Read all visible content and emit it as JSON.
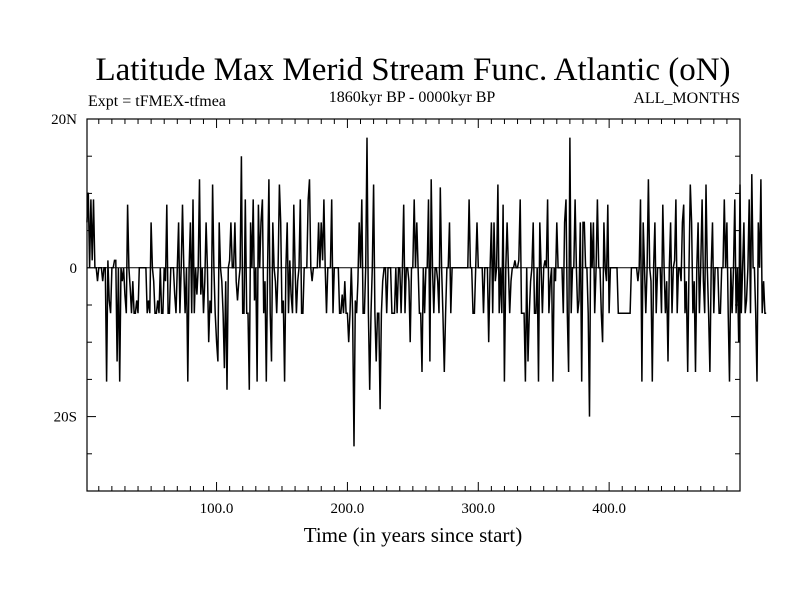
{
  "chart_data": {
    "type": "line",
    "title": "Latitude Max Merid Stream Func. Atlantic (oN)",
    "subtitle_left": "Expt = tFMEX-tfmea",
    "subtitle_center": "1860kyr BP - 0000kyr BP",
    "subtitle_right": "ALL_MONTHS",
    "xlabel": "Time (in years since start)",
    "ylabel": "",
    "xlim": [
      1,
      500
    ],
    "ylim": [
      -30,
      20
    ],
    "x_ticks": [
      100,
      200,
      300,
      400
    ],
    "x_tick_labels": [
      "100.0",
      "200.0",
      "300.0",
      "400.0"
    ],
    "y_ticks": [
      20,
      0,
      -20
    ],
    "y_tick_labels": [
      "20N",
      "0",
      "20S"
    ],
    "y_minor_ticks": [
      15,
      10,
      5,
      -5,
      -10,
      -15,
      -25
    ],
    "zero_line": true,
    "series": [
      {
        "name": "latitude",
        "x_start": 1,
        "x_step": 1,
        "values": [
          6.1,
          10.1,
          0,
          9.2,
          1,
          9.2,
          0,
          0,
          -1.8,
          0,
          0,
          0,
          -1.8,
          0,
          0,
          -15.3,
          1,
          -4.4,
          -6.1,
          0,
          0,
          1,
          1,
          -12.6,
          0,
          -15.3,
          0,
          -1.8,
          0,
          -3.6,
          -6.1,
          8.5,
          0,
          -2.7,
          -6.1,
          -1.8,
          -6.1,
          -6.1,
          -4.4,
          -6.1,
          0,
          0,
          0,
          0,
          0,
          0,
          -6.1,
          -4.4,
          -6.1,
          6.1,
          0,
          -1.8,
          -6.1,
          -6.1,
          -4.4,
          -6.1,
          0,
          -6.1,
          -6.1,
          0,
          -1.8,
          8.5,
          -6.1,
          -6.1,
          0,
          0,
          0,
          -3.6,
          -6.1,
          0,
          6.1,
          -6.1,
          0,
          8.5,
          0,
          -6.1,
          0,
          -15.3,
          0,
          6.1,
          -6.1,
          9.2,
          -6.1,
          0,
          -3.6,
          0,
          11.9,
          -3.6,
          0,
          -6.1,
          -1.8,
          6.1,
          0,
          -10,
          -4.4,
          -6.1,
          11.2,
          0,
          -6.1,
          -10,
          -12.6,
          6.1,
          0,
          -1.8,
          -6.1,
          -13.5,
          -1.8,
          -16.4,
          0,
          1,
          6.1,
          0,
          0,
          6.1,
          -1.8,
          -4.4,
          -1.8,
          0,
          15.0,
          -6.1,
          -6.1,
          9.2,
          -6.1,
          -6.1,
          -16.4,
          6.1,
          0,
          9.2,
          -4.4,
          0,
          -15.3,
          8.5,
          0,
          6.1,
          9.2,
          -6.1,
          -1.8,
          -15.3,
          0,
          11.9,
          -6.1,
          -12.6,
          6.1,
          0,
          -1.8,
          -6.1,
          0,
          11.2,
          6.1,
          -6.1,
          -4.4,
          -15.3,
          0,
          6.1,
          -6.1,
          1,
          -3.6,
          -6.1,
          8.5,
          0,
          -6.1,
          -1.8,
          0,
          9.2,
          -6.1,
          -6.1,
          0,
          0,
          0,
          9.2,
          11.9,
          0,
          -1.8,
          0,
          0,
          0,
          0,
          6.1,
          0,
          6.1,
          1,
          9.2,
          0,
          -6.1,
          0,
          0,
          0,
          9.2,
          -6.1,
          0,
          0,
          0,
          0,
          -6.1,
          -6.1,
          -3.6,
          -6.1,
          -1.8,
          -6.1,
          -6.1,
          -10,
          -6.1,
          0,
          -6.1,
          -24.0,
          -4.4,
          -6.1,
          -1.8,
          6.1,
          0,
          9.2,
          -6.1,
          -6.1,
          0,
          17.5,
          -6.1,
          -16.4,
          -6.1,
          0,
          11.2,
          -6.1,
          -12.6,
          -6.1,
          -6.1,
          -19.0,
          -6.1,
          -1.8,
          0,
          0,
          -6.1,
          0,
          0,
          0,
          -6.1,
          -6.1,
          -6.1,
          0,
          -6.1,
          0,
          0,
          -6.1,
          0,
          8.5,
          -6.1,
          0,
          0,
          -1.8,
          -10,
          0,
          0,
          9.2,
          0,
          6.1,
          0,
          -6.1,
          -6.1,
          -14.0,
          0,
          -6.1,
          0,
          0,
          9.2,
          -12.6,
          11.9,
          0,
          -6.1,
          0,
          0,
          -1.8,
          -6.1,
          10.8,
          0,
          -6.1,
          -14.0,
          -6.1,
          0,
          0,
          6.1,
          -6.1,
          0,
          0,
          0,
          0,
          0,
          0,
          0,
          0,
          0,
          0,
          0,
          0,
          0,
          9.2,
          0,
          0,
          -6.1,
          -6.1,
          0,
          6.1,
          0,
          0,
          0,
          0,
          -6.1,
          0,
          0,
          0,
          -10,
          0,
          6.1,
          -6.1,
          6.1,
          -1.8,
          0,
          11.2,
          -6.1,
          0,
          -6.1,
          8.5,
          -15.3,
          0,
          6.1,
          0,
          -6.1,
          -1.8,
          0,
          0,
          1,
          0,
          0,
          1,
          9.2,
          -6.1,
          -6.1,
          -6.1,
          -15.3,
          0,
          -12.6,
          -6.1,
          -1.8,
          0,
          6.1,
          -6.1,
          -6.1,
          0,
          -15.3,
          6.1,
          0,
          -6.1,
          0,
          1,
          0,
          9.2,
          -6.1,
          -1.8,
          0,
          -15.3,
          0,
          -1.8,
          6.1,
          0,
          0,
          0,
          0,
          -6.1,
          6.1,
          9.2,
          -6.1,
          -14.0,
          17.5,
          -6.1,
          0,
          0,
          9.2,
          0,
          -6.1,
          -4.4,
          6.1,
          -15.3,
          6.1,
          6.1,
          0,
          0,
          -6.1,
          -20.0,
          6.1,
          0,
          6.1,
          -6.1,
          0,
          9.2,
          0,
          0,
          -6.1,
          -10,
          6.1,
          0,
          -1.8,
          8.5,
          -6.1,
          0,
          0,
          0,
          0,
          0,
          0,
          -6.1,
          -6.1,
          -6.1,
          -6.1,
          -6.1,
          -6.1,
          -6.1,
          -6.1,
          -6.1,
          -6.1,
          0,
          0,
          0,
          0,
          0,
          -1.8,
          0,
          9.2,
          -15.3,
          6.1,
          0,
          -6.1,
          0,
          11.9,
          0,
          -1.8,
          -15.3,
          0,
          6.1,
          -6.1,
          0,
          0,
          0,
          -6.1,
          8.5,
          0,
          -6.1,
          -1.8,
          -12.6,
          0,
          6.1,
          -6.1,
          0,
          1,
          9.2,
          -6.1,
          0,
          0,
          -1.8,
          6.1,
          8.5,
          -6.1,
          -1.8,
          -14.0,
          0,
          11.2,
          6.1,
          -6.1,
          -1.8,
          -14.0,
          0,
          6.1,
          -6.1,
          0,
          9.2,
          -1.8,
          -6.1,
          11.2,
          0,
          -6.1,
          -14.0,
          0,
          6.1,
          -6.1,
          0,
          0,
          0,
          -6.1,
          -6.1,
          0,
          0,
          9.2,
          0,
          6.1,
          -6.1,
          -15.3,
          0,
          -6.1,
          0,
          9.2,
          -6.1,
          0,
          -10,
          11.2,
          -6.1,
          0,
          6.1,
          -6.1,
          -4.4,
          0,
          9.2,
          -6.1,
          12.6,
          0,
          0,
          -6.1,
          -15.3,
          6.1,
          0,
          11.9,
          -6.1,
          -1.8,
          -6.1,
          -6.1
        ]
      }
    ]
  }
}
